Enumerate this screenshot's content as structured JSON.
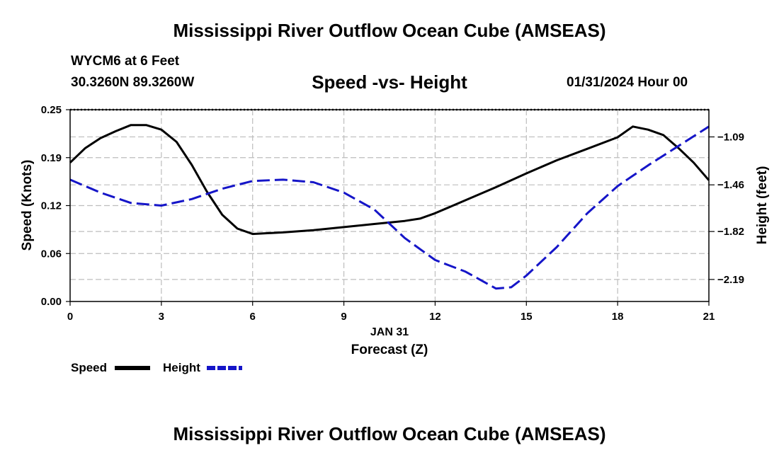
{
  "figure_title": "Mississippi River Outflow Ocean Cube (AMSEAS)",
  "station": "WYCM6 at 6 Feet",
  "location": "30.3260N  89.3260W",
  "timestamp": "01/31/2024 Hour 00",
  "chart_data": {
    "type": "line",
    "title": "Speed -vs- Height",
    "xlabel": "Forecast (Z)",
    "date_label": "JAN 31",
    "ylabel": "Speed (Knots)",
    "y2label": "Height (feet)",
    "xlim": [
      0,
      21
    ],
    "ylim": [
      0,
      0.25
    ],
    "y2lim": [
      -2.36,
      -0.88
    ],
    "grid": true,
    "x_ticks": [
      0,
      3,
      6,
      9,
      12,
      15,
      18,
      21
    ],
    "x_tick_labels": [
      "0",
      "3",
      "6",
      "9",
      "12",
      "15",
      "18",
      "21"
    ],
    "y_ticks": [
      0.0,
      0.0625,
      0.125,
      0.1875,
      0.25
    ],
    "y_tick_labels": [
      "0.00",
      "0.06",
      "0.12",
      "0.19",
      "0.25"
    ],
    "y2_ticks": [
      -2.19,
      -1.82,
      -1.46,
      -1.09
    ],
    "y2_tick_labels": [
      "−2.19",
      "−1.82",
      "−1.46",
      "−1.09"
    ],
    "series": [
      {
        "name": "Speed",
        "axis": "left",
        "color": "#000000",
        "dash": "solid",
        "x": [
          0,
          0.5,
          1,
          1.5,
          2,
          2.5,
          3,
          3.5,
          4,
          4.5,
          5,
          5.5,
          6,
          7,
          8,
          9,
          10,
          11,
          11.5,
          12,
          13,
          14,
          15,
          16,
          17,
          18,
          18.5,
          19,
          19.5,
          20,
          20.5,
          21
        ],
        "values": [
          0.181,
          0.2,
          0.213,
          0.222,
          0.23,
          0.23,
          0.224,
          0.208,
          0.178,
          0.143,
          0.113,
          0.095,
          0.088,
          0.09,
          0.093,
          0.097,
          0.101,
          0.105,
          0.108,
          0.115,
          0.132,
          0.149,
          0.167,
          0.184,
          0.199,
          0.214,
          0.228,
          0.224,
          0.217,
          0.2,
          0.181,
          0.158
        ]
      },
      {
        "name": "Height",
        "axis": "right",
        "color": "#1515c8",
        "dash": "dashed",
        "x": [
          0,
          1,
          2,
          3,
          4,
          5,
          6,
          7,
          8,
          9,
          10,
          11,
          12,
          13,
          14,
          14.5,
          15,
          16,
          17,
          18,
          19,
          20,
          21
        ],
        "values": [
          -1.42,
          -1.52,
          -1.6,
          -1.62,
          -1.57,
          -1.49,
          -1.43,
          -1.42,
          -1.44,
          -1.52,
          -1.65,
          -1.87,
          -2.04,
          -2.13,
          -2.26,
          -2.25,
          -2.16,
          -1.94,
          -1.68,
          -1.47,
          -1.31,
          -1.16,
          -1.01
        ]
      }
    ],
    "legend": [
      {
        "label": "Speed",
        "color": "#000000"
      },
      {
        "label": "Height",
        "color": "#1515c8"
      }
    ]
  }
}
